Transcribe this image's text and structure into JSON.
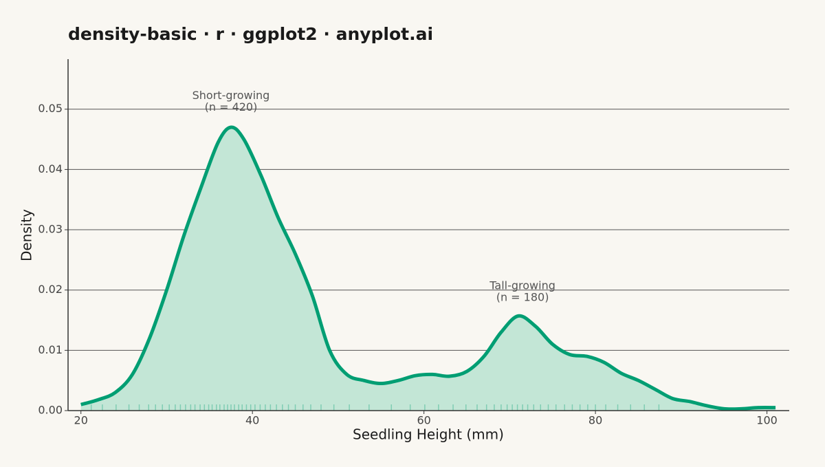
{
  "chart_data": {
    "type": "density",
    "title": "density-basic · r · ggplot2 · anyplot.ai",
    "x_label": "Seedling Height (mm)",
    "y_label": "Density",
    "color": "#009e73",
    "fill": "#c3e6d6",
    "grid": true,
    "xlim": [
      18.5,
      102.6
    ],
    "ylim": [
      0,
      0.0583
    ],
    "xticks": [
      20,
      40,
      60,
      80,
      100
    ],
    "yticks": [
      {
        "value": 0,
        "label": "0.00"
      },
      {
        "value": 0.01,
        "label": "0.01"
      },
      {
        "value": 0.02,
        "label": "0.02"
      },
      {
        "value": 0.03,
        "label": "0.03"
      },
      {
        "value": 0.04,
        "label": "0.04"
      },
      {
        "value": 0.05,
        "label": "0.05"
      }
    ],
    "x": [
      20,
      22,
      24,
      26,
      28,
      30,
      32,
      34,
      36,
      37.5,
      39,
      41,
      43,
      45,
      47,
      49,
      51,
      53,
      55,
      57,
      59,
      61,
      63,
      65,
      67,
      69,
      71,
      73,
      75,
      77,
      79,
      81,
      83,
      85,
      87,
      89,
      91,
      93,
      95,
      97,
      99,
      101
    ],
    "values": [
      0.001,
      0.0018,
      0.003,
      0.006,
      0.012,
      0.02,
      0.029,
      0.037,
      0.0445,
      0.047,
      0.045,
      0.039,
      0.032,
      0.026,
      0.019,
      0.01,
      0.006,
      0.005,
      0.0045,
      0.005,
      0.0058,
      0.006,
      0.0057,
      0.0065,
      0.009,
      0.013,
      0.0157,
      0.014,
      0.011,
      0.0093,
      0.009,
      0.008,
      0.0062,
      0.005,
      0.0035,
      0.002,
      0.0015,
      0.0008,
      0.0003,
      0.0003,
      0.0005,
      0.0005
    ],
    "rug": [
      21.2,
      22.5,
      24.1,
      25.6,
      26.8,
      27.9,
      28.7,
      29.5,
      30.3,
      31.0,
      31.6,
      32.2,
      32.8,
      33.3,
      33.9,
      34.4,
      34.9,
      35.3,
      35.8,
      36.2,
      36.7,
      37.1,
      37.5,
      37.9,
      38.4,
      38.8,
      39.3,
      39.8,
      40.3,
      40.9,
      41.5,
      42.1,
      42.8,
      43.5,
      44.2,
      45.0,
      45.9,
      46.8,
      48.0,
      49.5,
      51.3,
      53.6,
      56.2,
      58.4,
      60.1,
      61.7,
      63.4,
      64.9,
      66.2,
      67.3,
      68.2,
      69.0,
      69.7,
      70.3,
      70.9,
      71.5,
      72.1,
      72.8,
      73.6,
      74.5,
      75.4,
      76.4,
      77.3,
      78.2,
      79.1,
      80.0,
      81.2,
      82.6,
      84.1,
      85.7,
      87.4
    ],
    "annotations": [
      {
        "lines": [
          "Short-growing",
          "(n = 420)"
        ],
        "x": 37.5,
        "y": 0.0512
      },
      {
        "lines": [
          "Tall-growing",
          "(n = 180)"
        ],
        "x": 71.5,
        "y": 0.0197
      }
    ]
  }
}
